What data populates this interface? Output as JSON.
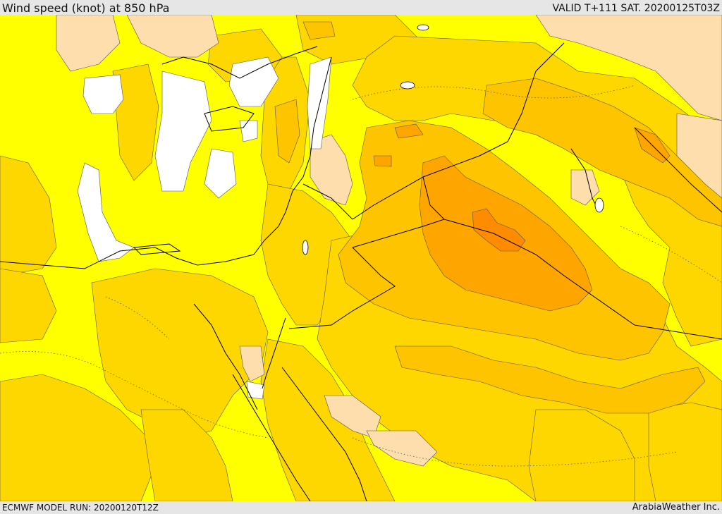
{
  "header": {
    "title": "Wind speed (knot) at 850 hPa",
    "valid": "VALID T+111 SAT. 20200125T03Z"
  },
  "footer": {
    "model_run": "ECMWF MODEL RUN: 20200120T12Z",
    "credit": "ArabiaWeather Inc."
  },
  "colors": {
    "white": "#ffffff",
    "yellow": "#ffff00",
    "gold": "#ffd700",
    "tan": "#ffdead",
    "amber": "#ffc400",
    "orange": "#ffa500",
    "dark_orange": "#ff8c00"
  }
}
